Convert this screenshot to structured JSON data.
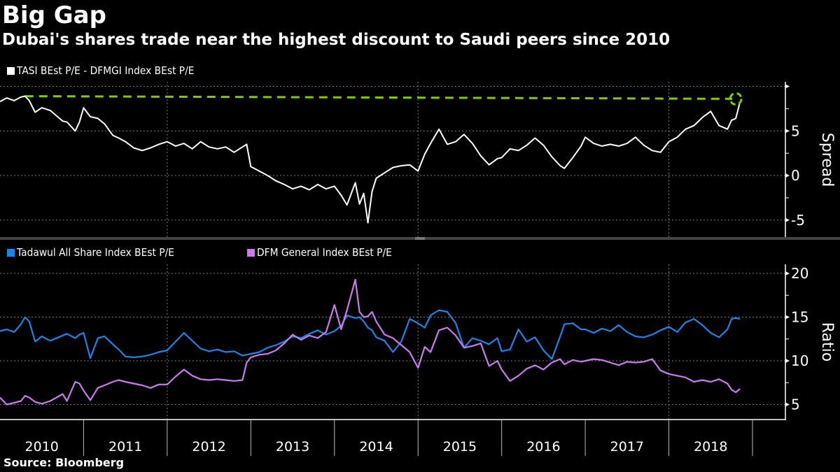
{
  "header": {
    "title": "Big Gap",
    "subtitle": "Dubai's shares trade near the highest discount to Saudi peers since 2010"
  },
  "footer": {
    "source": "Source: Bloomberg"
  },
  "colors": {
    "background": "#000000",
    "spread": "#ffffff",
    "tadawul": "#1a86e8",
    "dfm": "#cc7aee",
    "highlight": "#7ccc0c",
    "grid": "#7a7a7a",
    "divider": "#444444"
  },
  "chart_data": [
    {
      "type": "line",
      "title": "",
      "legend": [
        {
          "name": "TASI BEst P/E - DFMGI Index BEst P/E",
          "color": "#ffffff"
        }
      ],
      "legend_position": "top-left",
      "ylabel": "Spread",
      "ylim": [
        -6.5,
        10
      ],
      "yticks": [
        -5,
        0,
        5
      ],
      "grid": true,
      "annotation": {
        "type": "dashed-horizontal-line",
        "y_start": 8.9,
        "y_end": 8.6,
        "x_start": 2010.3,
        "x_end": 2018.8,
        "label": "",
        "end_marker": "circle-highlight",
        "color": "#7ccc0c"
      },
      "x": [
        2010.0,
        2010.08,
        2010.17,
        2010.25,
        2010.3,
        2010.35,
        2010.42,
        2010.5,
        2010.6,
        2010.75,
        2010.8,
        2010.9,
        2010.95,
        2011.0,
        2011.08,
        2011.17,
        2011.25,
        2011.35,
        2011.42,
        2011.5,
        2011.6,
        2011.7,
        2011.8,
        2011.9,
        2012.0,
        2012.1,
        2012.2,
        2012.3,
        2012.4,
        2012.5,
        2012.6,
        2012.7,
        2012.8,
        2012.9,
        2012.95,
        2013.0,
        2013.1,
        2013.2,
        2013.3,
        2013.4,
        2013.5,
        2013.6,
        2013.7,
        2013.8,
        2013.9,
        2014.0,
        2014.08,
        2014.15,
        2014.25,
        2014.3,
        2014.35,
        2014.4,
        2014.45,
        2014.5,
        2014.6,
        2014.7,
        2014.8,
        2014.9,
        2015.0,
        2015.08,
        2015.15,
        2015.25,
        2015.35,
        2015.45,
        2015.55,
        2015.65,
        2015.75,
        2015.85,
        2015.95,
        2016.0,
        2016.1,
        2016.2,
        2016.3,
        2016.4,
        2016.5,
        2016.6,
        2016.7,
        2016.75,
        2016.85,
        2016.95,
        2017.0,
        2017.1,
        2017.2,
        2017.3,
        2017.4,
        2017.5,
        2017.6,
        2017.7,
        2017.8,
        2017.9,
        2018.0,
        2018.1,
        2018.2,
        2018.3,
        2018.4,
        2018.5,
        2018.6,
        2018.7,
        2018.75,
        2018.8,
        2018.85
      ],
      "series": [
        {
          "name": "TASI BEst P/E - DFMGI Index BEst P/E",
          "values": [
            8.3,
            8.7,
            8.4,
            8.8,
            8.9,
            8.4,
            7.1,
            7.6,
            7.3,
            6.1,
            6.0,
            5.0,
            6.0,
            7.6,
            6.6,
            6.4,
            5.8,
            4.5,
            4.2,
            3.8,
            3.1,
            2.8,
            3.1,
            3.5,
            3.8,
            3.3,
            3.6,
            3.0,
            3.8,
            3.2,
            3.0,
            3.2,
            2.6,
            3.2,
            3.5,
            1.0,
            0.5,
            0.0,
            -0.6,
            -1.0,
            -1.5,
            -1.2,
            -1.6,
            -1.0,
            -1.5,
            -1.2,
            -2.2,
            -3.3,
            -0.8,
            -3.2,
            -2.0,
            -5.3,
            -1.8,
            -0.3,
            0.3,
            0.9,
            1.1,
            1.2,
            0.5,
            2.4,
            3.6,
            5.2,
            3.5,
            3.8,
            4.6,
            3.6,
            2.2,
            1.2,
            1.9,
            2.0,
            3.0,
            2.8,
            3.4,
            4.2,
            3.4,
            2.1,
            1.1,
            0.8,
            2.0,
            3.3,
            4.3,
            3.6,
            3.3,
            3.5,
            3.3,
            3.6,
            4.3,
            3.4,
            2.8,
            2.6,
            3.8,
            4.3,
            5.2,
            5.6,
            6.5,
            7.2,
            5.6,
            5.2,
            6.2,
            6.4,
            8.2,
            8.6,
            8.0
          ]
        }
      ]
    },
    {
      "type": "line",
      "title": "",
      "legend": [
        {
          "name": "Tadawul All Share Index BEst P/E",
          "color": "#1a86e8"
        },
        {
          "name": "DFM General Index BEst P/E",
          "color": "#cc7aee"
        }
      ],
      "legend_position": "top-left",
      "ylabel": "Ratio",
      "ylim": [
        3.5,
        20.8
      ],
      "yticks": [
        5,
        10,
        15,
        20
      ],
      "grid": true,
      "xlabel": "",
      "xticklabels": [
        "2010",
        "2011",
        "2012",
        "2013",
        "2014",
        "2015",
        "2016",
        "2017",
        "2018"
      ],
      "x": [
        2010.0,
        2010.08,
        2010.17,
        2010.25,
        2010.3,
        2010.35,
        2010.42,
        2010.5,
        2010.6,
        2010.75,
        2010.8,
        2010.9,
        2010.95,
        2011.0,
        2011.08,
        2011.17,
        2011.25,
        2011.35,
        2011.42,
        2011.5,
        2011.6,
        2011.7,
        2011.8,
        2011.9,
        2012.0,
        2012.1,
        2012.2,
        2012.3,
        2012.4,
        2012.5,
        2012.6,
        2012.7,
        2012.8,
        2012.9,
        2012.95,
        2013.0,
        2013.1,
        2013.2,
        2013.3,
        2013.4,
        2013.5,
        2013.6,
        2013.7,
        2013.8,
        2013.9,
        2014.0,
        2014.08,
        2014.15,
        2014.25,
        2014.3,
        2014.35,
        2014.4,
        2014.45,
        2014.5,
        2014.6,
        2014.7,
        2014.8,
        2014.9,
        2015.0,
        2015.08,
        2015.15,
        2015.25,
        2015.35,
        2015.45,
        2015.55,
        2015.65,
        2015.75,
        2015.85,
        2015.95,
        2016.0,
        2016.1,
        2016.2,
        2016.3,
        2016.4,
        2016.5,
        2016.6,
        2016.7,
        2016.75,
        2016.85,
        2016.95,
        2017.0,
        2017.1,
        2017.2,
        2017.3,
        2017.4,
        2017.5,
        2017.6,
        2017.7,
        2017.8,
        2017.9,
        2018.0,
        2018.1,
        2018.2,
        2018.3,
        2018.4,
        2018.5,
        2018.6,
        2018.7,
        2018.75,
        2018.8,
        2018.85
      ],
      "series": [
        {
          "name": "Tadawul All Share Index BEst P/E",
          "values": [
            13.4,
            13.6,
            13.3,
            14.2,
            15.0,
            14.5,
            12.2,
            12.8,
            12.3,
            12.9,
            13.1,
            12.6,
            13.0,
            13.2,
            10.3,
            12.6,
            12.8,
            11.9,
            11.3,
            10.5,
            10.4,
            10.5,
            10.7,
            11.0,
            11.2,
            12.2,
            13.2,
            12.3,
            11.4,
            11.1,
            11.3,
            11.0,
            11.1,
            10.6,
            10.7,
            10.8,
            11.0,
            11.5,
            11.8,
            12.2,
            12.8,
            12.6,
            13.1,
            13.5,
            13.0,
            13.4,
            14.0,
            15.2,
            14.9,
            15.0,
            14.5,
            13.8,
            13.5,
            12.7,
            12.3,
            11.0,
            12.2,
            14.8,
            14.3,
            13.8,
            15.2,
            15.8,
            15.6,
            14.3,
            11.5,
            12.6,
            12.3,
            11.9,
            12.6,
            11.1,
            11.3,
            13.6,
            12.2,
            12.7,
            11.2,
            10.2,
            12.8,
            14.2,
            14.3,
            13.6,
            13.6,
            13.2,
            13.7,
            13.4,
            14.1,
            13.3,
            12.8,
            12.7,
            13.0,
            13.5,
            13.9,
            13.3,
            14.4,
            14.8,
            14.1,
            13.2,
            12.7,
            13.6,
            14.8,
            14.9,
            14.8
          ]
        },
        {
          "name": "DFM General Index BEst P/E",
          "values": [
            5.8,
            5.0,
            5.2,
            5.4,
            6.0,
            5.8,
            5.3,
            5.1,
            5.4,
            6.2,
            5.4,
            7.6,
            7.4,
            6.6,
            5.5,
            6.9,
            7.2,
            7.6,
            7.8,
            7.6,
            7.4,
            7.2,
            6.9,
            7.3,
            7.3,
            8.2,
            9.0,
            8.3,
            7.9,
            7.8,
            7.9,
            7.8,
            7.7,
            7.8,
            9.8,
            10.4,
            10.7,
            10.8,
            11.2,
            12.0,
            13.0,
            12.4,
            12.9,
            12.6,
            13.3,
            16.4,
            13.6,
            15.8,
            19.3,
            15.6,
            15.0,
            15.1,
            15.6,
            14.5,
            13.0,
            12.6,
            11.8,
            11.0,
            9.2,
            11.6,
            11.0,
            13.5,
            13.8,
            12.9,
            11.5,
            11.7,
            12.0,
            9.4,
            10.0,
            9.0,
            7.7,
            8.3,
            9.1,
            9.5,
            9.0,
            9.8,
            10.2,
            9.6,
            10.1,
            9.9,
            10.0,
            10.2,
            10.1,
            9.8,
            9.5,
            9.9,
            9.8,
            9.9,
            10.2,
            8.9,
            8.5,
            8.3,
            8.1,
            7.6,
            7.8,
            7.6,
            7.9,
            7.4,
            6.7,
            6.4,
            6.8
          ]
        }
      ]
    }
  ]
}
